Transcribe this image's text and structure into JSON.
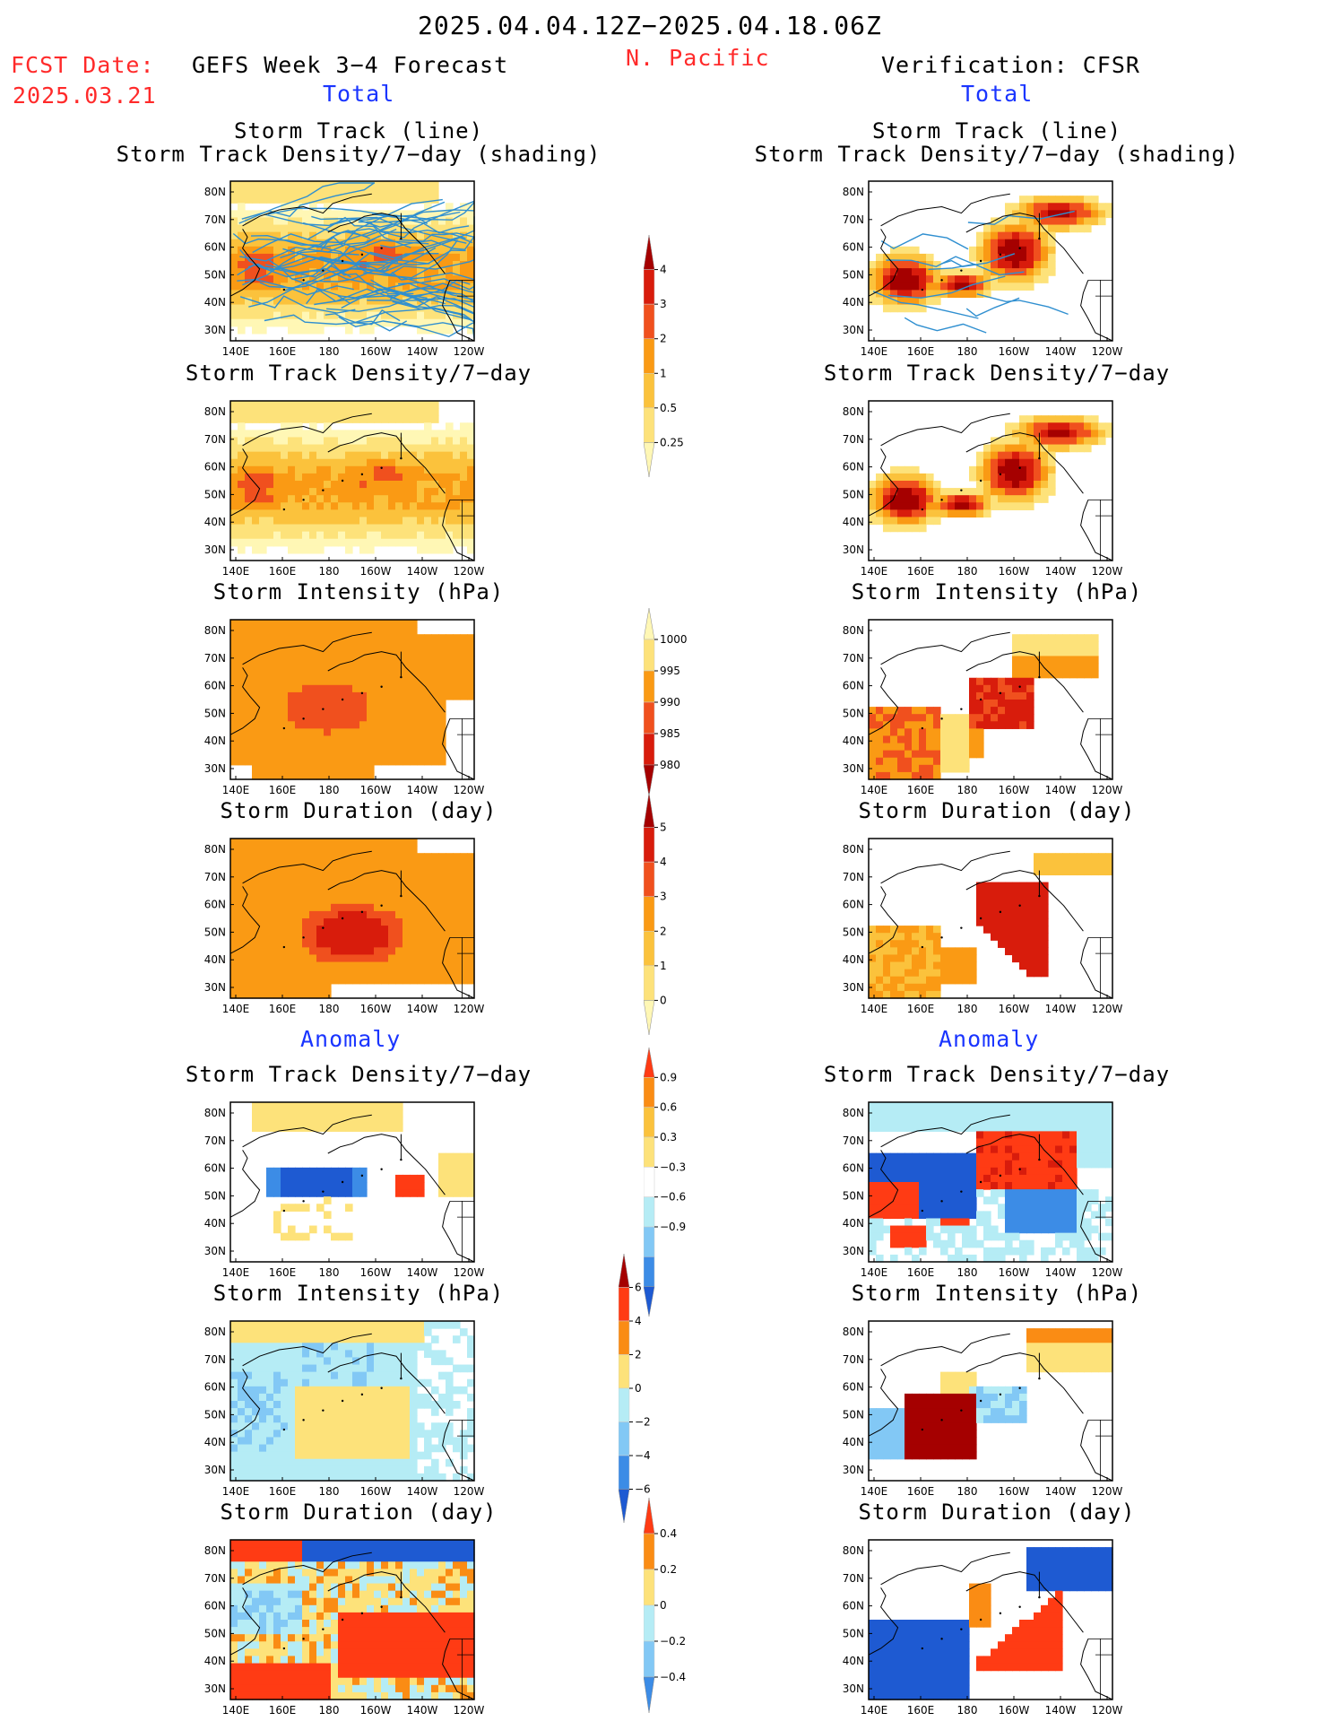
{
  "header": {
    "period": "2025.04.04.12Z−2025.04.18.06Z",
    "fcst_label": "FCST Date:",
    "fcst_date": "2025.03.21",
    "left_title": "GEFS Week 3−4 Forecast",
    "region": "N. Pacific",
    "right_title": "Verification: CFSR",
    "left_sub": "Total",
    "right_sub": "Total",
    "anomaly_left": "Anomaly",
    "anomaly_right": "Anomaly"
  },
  "titles": {
    "storm_track_line": "Storm Track (line)",
    "storm_track_shading": "Storm Track Density/7−day (shading)",
    "storm_track_density": "Storm Track Density/7−day",
    "storm_intensity": "Storm Intensity (hPa)",
    "storm_duration": "Storm Duration (day)"
  },
  "axes": {
    "lat_labels": [
      "80N",
      "70N",
      "60N",
      "50N",
      "40N",
      "30N"
    ],
    "lon_labels": [
      "140E",
      "160E",
      "180",
      "160W",
      "140W",
      "120W"
    ]
  },
  "colorbars": [
    {
      "id": "density_total",
      "labels": [
        "4",
        "3",
        "2",
        "1",
        "0.5",
        "0.25"
      ],
      "colors": [
        "#a50000",
        "#d81c0c",
        "#f0501e",
        "#fa9a14",
        "#fbc23c",
        "#fde27a",
        "#fff7b5"
      ]
    },
    {
      "id": "intensity_total",
      "labels": [
        "1000",
        "995",
        "990",
        "985",
        "980"
      ],
      "colors": [
        "#fff7b5",
        "#fde27a",
        "#fa9a14",
        "#f0501e",
        "#d81c0c",
        "#a50000"
      ]
    },
    {
      "id": "duration_total",
      "labels": [
        "5",
        "4",
        "3",
        "2",
        "1",
        "0"
      ],
      "colors": [
        "#a50000",
        "#d81c0c",
        "#f0501e",
        "#fa9a14",
        "#fbc23c",
        "#fde27a",
        "#fff7b5"
      ]
    },
    {
      "id": "density_anom",
      "labels": [
        "0.9",
        "0.6",
        "0.3",
        "−0.3",
        "−0.6",
        "−0.9"
      ],
      "colors": [
        "#ff3b14",
        "#fa8c14",
        "#fbc23c",
        "#fde27a",
        "#ffffff",
        "#b5ecf5",
        "#82c8f5",
        "#3c8ce6",
        "#1e5ad2"
      ]
    },
    {
      "id": "intensity_anom",
      "labels": [
        "6",
        "4",
        "2",
        "0",
        "−2",
        "−4",
        "−6"
      ],
      "colors": [
        "#a50000",
        "#ff3b14",
        "#fa8c14",
        "#fde27a",
        "#b5ecf5",
        "#82c8f5",
        "#3c8ce6",
        "#1e5ad2"
      ]
    },
    {
      "id": "duration_anom",
      "labels": [
        "0.4",
        "0.2",
        "0",
        "−0.2",
        "−0.4"
      ],
      "colors": [
        "#ff3b14",
        "#fa8c14",
        "#fde27a",
        "#b5ecf5",
        "#82c8f5",
        "#3c8ce6"
      ]
    }
  ],
  "chart_data": [
    {
      "type": "heatmap",
      "panel": "GEFS storm track (line) + density shading",
      "title": "Storm Track (line) / Storm Track Density/7−day (shading)",
      "units": "tracks per 7-day"
    },
    {
      "type": "heatmap",
      "panel": "CFSR storm track (line) + density shading",
      "title": "Storm Track (line) / Storm Track Density/7−day (shading)"
    },
    {
      "type": "heatmap",
      "panel": "GEFS total density",
      "title": "Storm Track Density/7−day",
      "levels": [
        0.25,
        0.5,
        1,
        2,
        3,
        4
      ]
    },
    {
      "type": "heatmap",
      "panel": "CFSR total density",
      "title": "Storm Track Density/7−day",
      "levels": [
        0.25,
        0.5,
        1,
        2,
        3,
        4
      ]
    },
    {
      "type": "heatmap",
      "panel": "GEFS total intensity",
      "title": "Storm Intensity (hPa)",
      "levels": [
        980,
        985,
        990,
        995,
        1000
      ]
    },
    {
      "type": "heatmap",
      "panel": "CFSR total intensity",
      "title": "Storm Intensity (hPa)",
      "levels": [
        980,
        985,
        990,
        995,
        1000
      ]
    },
    {
      "type": "heatmap",
      "panel": "GEFS total duration",
      "title": "Storm Duration (day)",
      "levels": [
        0,
        1,
        2,
        3,
        4,
        5
      ]
    },
    {
      "type": "heatmap",
      "panel": "CFSR total duration",
      "title": "Storm Duration (day)",
      "levels": [
        0,
        1,
        2,
        3,
        4,
        5
      ]
    },
    {
      "type": "heatmap",
      "panel": "GEFS anomaly density",
      "title": "Storm Track Density/7−day",
      "levels": [
        -0.9,
        -0.6,
        -0.3,
        0.3,
        0.6,
        0.9
      ]
    },
    {
      "type": "heatmap",
      "panel": "CFSR anomaly density",
      "title": "Storm Track Density/7−day",
      "levels": [
        -0.9,
        -0.6,
        -0.3,
        0.3,
        0.6,
        0.9
      ]
    },
    {
      "type": "heatmap",
      "panel": "GEFS anomaly intensity",
      "title": "Storm Intensity (hPa)",
      "levels": [
        -6,
        -4,
        -2,
        0,
        2,
        4,
        6
      ]
    },
    {
      "type": "heatmap",
      "panel": "CFSR anomaly intensity",
      "title": "Storm Intensity (hPa)",
      "levels": [
        -6,
        -4,
        -2,
        0,
        2,
        4,
        6
      ]
    },
    {
      "type": "heatmap",
      "panel": "GEFS anomaly duration",
      "title": "Storm Duration (day)",
      "levels": [
        -0.4,
        -0.2,
        0,
        0.2,
        0.4
      ]
    },
    {
      "type": "heatmap",
      "panel": "CFSR anomaly duration",
      "title": "Storm Duration (day)",
      "levels": [
        -0.4,
        -0.2,
        0,
        0.2,
        0.4
      ]
    }
  ]
}
